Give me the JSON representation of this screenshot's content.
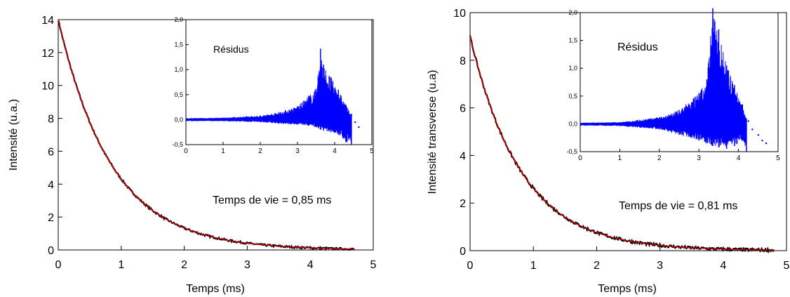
{
  "chart_data": [
    {
      "type": "line",
      "xlabel": "Temps (ms)",
      "ylabel": "Intensité (u.a.)",
      "xlim": [
        0,
        5
      ],
      "ylim": [
        0,
        14
      ],
      "x_ticks": [
        0,
        1,
        2,
        3,
        4,
        5
      ],
      "y_ticks": [
        0,
        2,
        4,
        6,
        8,
        10,
        12,
        14
      ],
      "x_tick_labels": [
        "0",
        "1",
        "2",
        "3",
        "4",
        "5"
      ],
      "y_tick_labels": [
        "0",
        "2",
        "4",
        "6",
        "8",
        "10",
        "12",
        "14"
      ],
      "annotation": "Temps de vie = 0,85 ms",
      "lifetime_ms": 0.85,
      "series": [
        {
          "role": "data",
          "color": "#000000",
          "x_start": 0,
          "x_end": 4.7,
          "initial_value": 14.0
        },
        {
          "role": "fit",
          "color": "#cc0000",
          "x_start": 0,
          "x_end": 4.7,
          "initial_value": 14.0
        }
      ],
      "inset": {
        "type": "line",
        "title": "Résidus",
        "xlim": [
          0,
          5
        ],
        "ylim": [
          -0.5,
          2.0
        ],
        "x_ticks": [
          0,
          1,
          2,
          3,
          4,
          5
        ],
        "y_ticks": [
          -0.5,
          0.0,
          0.5,
          1.0,
          1.5,
          2.0
        ],
        "x_tick_labels": [
          "0",
          "1",
          "2",
          "3",
          "4",
          "5"
        ],
        "y_tick_labels": [
          "-0,5",
          "0,0",
          "0,5",
          "1,0",
          "1,5",
          "2,0"
        ],
        "color": "#0000ff",
        "residual_envelope": {
          "x": [
            0,
            1.0,
            2.0,
            2.5,
            3.0,
            3.3,
            3.5,
            3.62,
            3.7,
            3.9,
            4.1,
            4.3,
            4.45
          ],
          "upper": [
            0.03,
            0.04,
            0.08,
            0.15,
            0.27,
            0.48,
            0.62,
            1.42,
            1.1,
            0.85,
            0.6,
            0.3,
            0.1
          ],
          "lower": [
            -0.03,
            -0.03,
            -0.05,
            -0.08,
            -0.1,
            -0.12,
            -0.15,
            -0.2,
            -0.22,
            -0.25,
            -0.3,
            -0.45,
            -0.5
          ]
        },
        "tail_points": {
          "x": [
            4.45,
            4.55,
            4.65
          ],
          "y": [
            0.1,
            -0.05,
            -0.15
          ]
        }
      }
    },
    {
      "type": "line",
      "xlabel": "Temps (ms)",
      "ylabel": "Intensité transverse (u.a)",
      "xlim": [
        0,
        5
      ],
      "ylim": [
        0,
        10
      ],
      "x_ticks": [
        0,
        1,
        2,
        3,
        4,
        5
      ],
      "y_ticks": [
        0,
        2,
        4,
        6,
        8,
        10
      ],
      "x_tick_labels": [
        "0",
        "1",
        "2",
        "3",
        "4",
        "5"
      ],
      "y_tick_labels": [
        "0",
        "2",
        "4",
        "6",
        "8",
        "10"
      ],
      "annotation": "Temps de vie = 0,81 ms",
      "lifetime_ms": 0.81,
      "series": [
        {
          "role": "data",
          "color": "#000000",
          "x_start": 0,
          "x_end": 4.8,
          "initial_value": 9.0
        },
        {
          "role": "fit",
          "color": "#cc0000",
          "x_start": 0,
          "x_end": 4.8,
          "initial_value": 9.0
        }
      ],
      "inset": {
        "type": "line",
        "title": "Résidus",
        "xlim": [
          0,
          5
        ],
        "ylim": [
          -0.5,
          2.0
        ],
        "x_ticks": [
          0,
          1,
          2,
          3,
          4,
          5
        ],
        "y_ticks": [
          -0.5,
          0.0,
          0.5,
          1.0,
          1.5,
          2.0
        ],
        "x_tick_labels": [
          "0",
          "1",
          "2",
          "3",
          "4",
          "5"
        ],
        "y_tick_labels": [
          "-0,5",
          "0,0",
          "0,5",
          "1,0",
          "1,5",
          "2,0"
        ],
        "color": "#0000ff",
        "residual_envelope": {
          "x": [
            0,
            1.0,
            2.0,
            2.5,
            3.0,
            3.2,
            3.35,
            3.5,
            3.7,
            3.9,
            4.1,
            4.2
          ],
          "upper": [
            0.02,
            0.03,
            0.12,
            0.25,
            0.55,
            0.8,
            2.08,
            1.7,
            1.05,
            0.7,
            0.35,
            0.1
          ],
          "lower": [
            -0.03,
            -0.04,
            -0.1,
            -0.2,
            -0.3,
            -0.35,
            -0.4,
            -0.42,
            -0.45,
            -0.4,
            -0.3,
            -0.5
          ]
        },
        "tail_points": {
          "x": [
            4.25,
            4.35,
            4.5,
            4.6,
            4.7
          ],
          "y": [
            0.05,
            -0.1,
            -0.2,
            -0.3,
            -0.35
          ]
        }
      }
    }
  ]
}
